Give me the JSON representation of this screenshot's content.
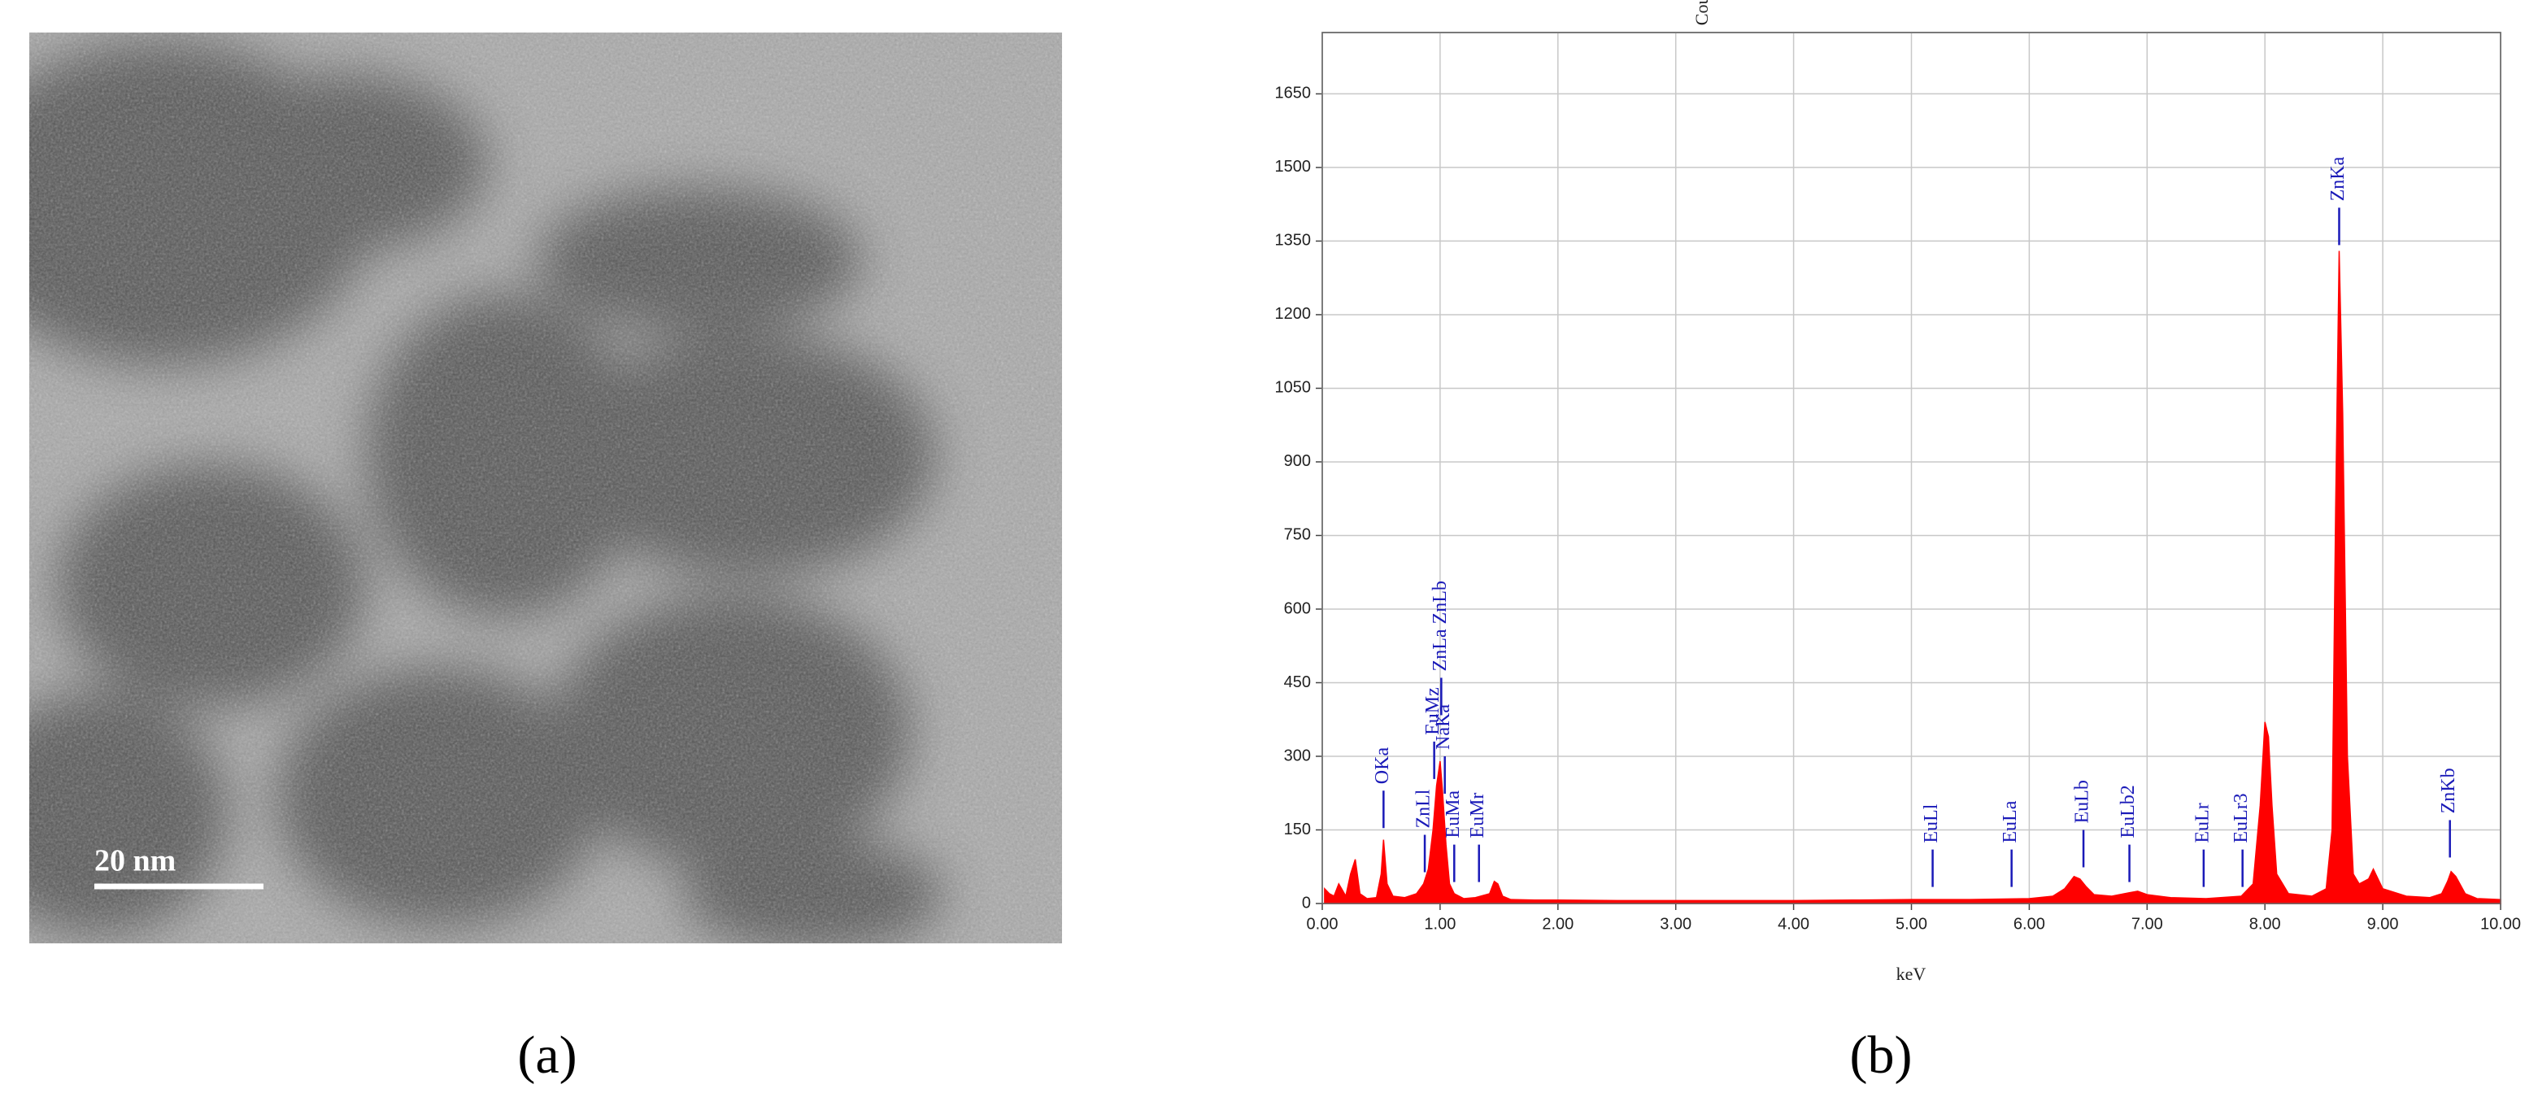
{
  "panel_a": {
    "label": "(a)",
    "scale_bar": "20 nm"
  },
  "chart_data": {
    "type": "area",
    "panel_label": "(b)",
    "x_label": "keV",
    "y_label": "Counts",
    "color": "#ff0000",
    "marker_color": "#1a1ab8",
    "grid": true,
    "xlim": [
      0,
      10
    ],
    "ylim": [
      0,
      1775
    ],
    "xticks": [
      {
        "value": 0,
        "label": "0.00"
      },
      {
        "value": 1,
        "label": "1.00"
      },
      {
        "value": 2,
        "label": "2.00"
      },
      {
        "value": 3,
        "label": "3.00"
      },
      {
        "value": 4,
        "label": "4.00"
      },
      {
        "value": 5,
        "label": "5.00"
      },
      {
        "value": 6,
        "label": "6.00"
      },
      {
        "value": 7,
        "label": "7.00"
      },
      {
        "value": 8,
        "label": "8.00"
      },
      {
        "value": 9,
        "label": "9.00"
      },
      {
        "value": 10,
        "label": "10.00"
      }
    ],
    "yticks": [
      0,
      150,
      300,
      450,
      600,
      750,
      900,
      1050,
      1200,
      1350,
      1500,
      1650
    ],
    "x": [
      0.02,
      0.06,
      0.1,
      0.14,
      0.2,
      0.24,
      0.28,
      0.32,
      0.38,
      0.46,
      0.5,
      0.52,
      0.55,
      0.6,
      0.7,
      0.8,
      0.86,
      0.9,
      0.94,
      0.97,
      1.0,
      1.02,
      1.05,
      1.08,
      1.12,
      1.2,
      1.3,
      1.42,
      1.46,
      1.49,
      1.53,
      1.6,
      1.8,
      2.0,
      2.5,
      3.0,
      3.5,
      4.0,
      4.5,
      5.0,
      5.5,
      6.0,
      6.2,
      6.3,
      6.38,
      6.43,
      6.48,
      6.55,
      6.7,
      6.85,
      6.92,
      7.0,
      7.2,
      7.5,
      7.8,
      7.9,
      7.96,
      8.0,
      8.03,
      8.06,
      8.1,
      8.2,
      8.4,
      8.52,
      8.57,
      8.6,
      8.63,
      8.66,
      8.7,
      8.75,
      8.8,
      8.88,
      8.92,
      9.0,
      9.2,
      9.4,
      9.5,
      9.55,
      9.58,
      9.62,
      9.7,
      9.8,
      10.0
    ],
    "values": [
      30,
      20,
      15,
      40,
      15,
      60,
      90,
      20,
      10,
      12,
      60,
      130,
      40,
      15,
      12,
      20,
      40,
      70,
      150,
      240,
      290,
      230,
      120,
      40,
      20,
      10,
      12,
      20,
      45,
      40,
      15,
      8,
      7,
      7,
      6,
      6,
      6,
      6,
      7,
      8,
      8,
      10,
      15,
      30,
      55,
      50,
      35,
      18,
      15,
      22,
      25,
      18,
      12,
      10,
      15,
      40,
      200,
      370,
      340,
      200,
      60,
      20,
      15,
      30,
      150,
      800,
      1330,
      1000,
      300,
      60,
      40,
      50,
      70,
      30,
      15,
      12,
      20,
      45,
      65,
      55,
      20,
      10,
      8
    ],
    "markers": [
      {
        "label": "OKa",
        "x": 0.52,
        "y": 230
      },
      {
        "label": "ZnLl",
        "x": 0.87,
        "y": 140
      },
      {
        "label": "EuMz",
        "x": 0.95,
        "y": 330
      },
      {
        "label": "NaKa",
        "x": 1.04,
        "y": 300
      },
      {
        "label": "ZnLa ZnLb",
        "x": 1.01,
        "y": 460
      },
      {
        "label": "EuMa",
        "x": 1.12,
        "y": 120
      },
      {
        "label": "EuMr",
        "x": 1.33,
        "y": 120
      },
      {
        "label": "EuLl",
        "x": 5.18,
        "y": 110
      },
      {
        "label": "EuLa",
        "x": 5.85,
        "y": 110
      },
      {
        "label": "EuLb",
        "x": 6.46,
        "y": 150
      },
      {
        "label": "EuLb2",
        "x": 6.85,
        "y": 120
      },
      {
        "label": "EuLr",
        "x": 7.48,
        "y": 110
      },
      {
        "label": "EuLr3",
        "x": 7.81,
        "y": 110
      },
      {
        "label": "ZnKa",
        "x": 8.63,
        "y": 1418
      },
      {
        "label": "ZnKb",
        "x": 9.57,
        "y": 170
      }
    ]
  }
}
